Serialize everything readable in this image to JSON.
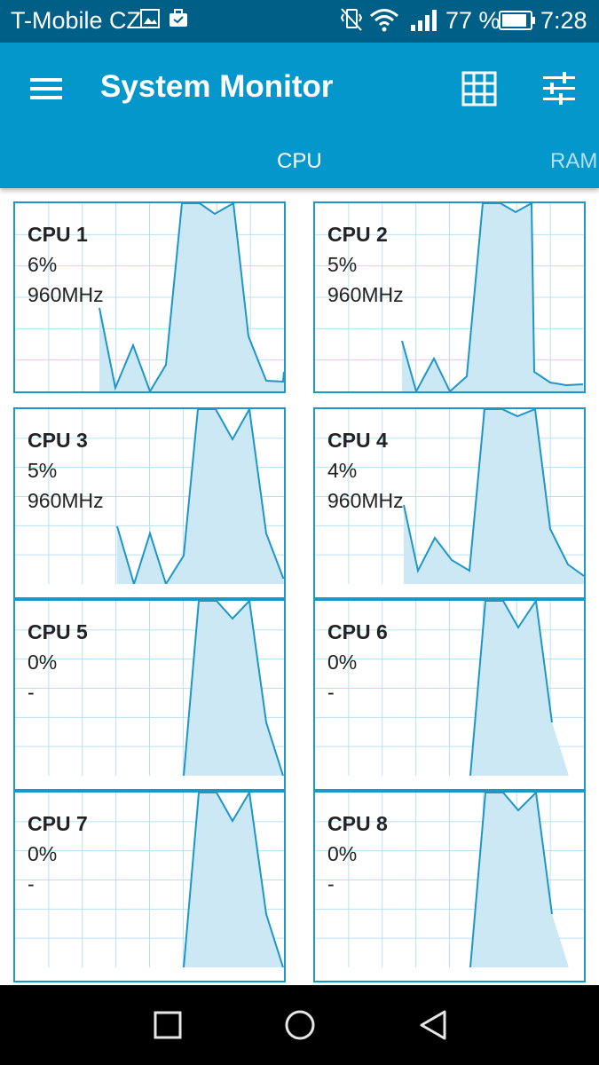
{
  "status_bar": {
    "carrier": "T-Mobile CZ",
    "battery_percent": "77 %",
    "time": "7:28"
  },
  "app_bar": {
    "title": "System Monitor",
    "icons": [
      "menu-icon",
      "grid-icon",
      "tune-icon"
    ]
  },
  "tabs": [
    {
      "label": "CPU",
      "selected": true
    },
    {
      "label": "RAM",
      "selected": false
    }
  ],
  "cpus": [
    {
      "name": "CPU 1",
      "load": "6%",
      "freq": "960MHz"
    },
    {
      "name": "CPU 2",
      "load": "5%",
      "freq": "960MHz"
    },
    {
      "name": "CPU 3",
      "load": "5%",
      "freq": "960MHz"
    },
    {
      "name": "CPU 4",
      "load": "4%",
      "freq": "960MHz"
    },
    {
      "name": "CPU 5",
      "load": "0%",
      "freq": "-"
    },
    {
      "name": "CPU 6",
      "load": "0%",
      "freq": "-"
    },
    {
      "name": "CPU 7",
      "load": "0%",
      "freq": "-"
    },
    {
      "name": "CPU 8",
      "load": "0%",
      "freq": "-"
    }
  ],
  "colors": {
    "status_bar": "#005f86",
    "app_bar": "#0497cc",
    "graph_line": "#1f96c8",
    "graph_fill": "#cbe8f4",
    "grid_line": "#b9e0f0"
  },
  "nav_bar": {
    "icons": [
      "recents-icon",
      "home-icon",
      "back-icon"
    ]
  }
}
